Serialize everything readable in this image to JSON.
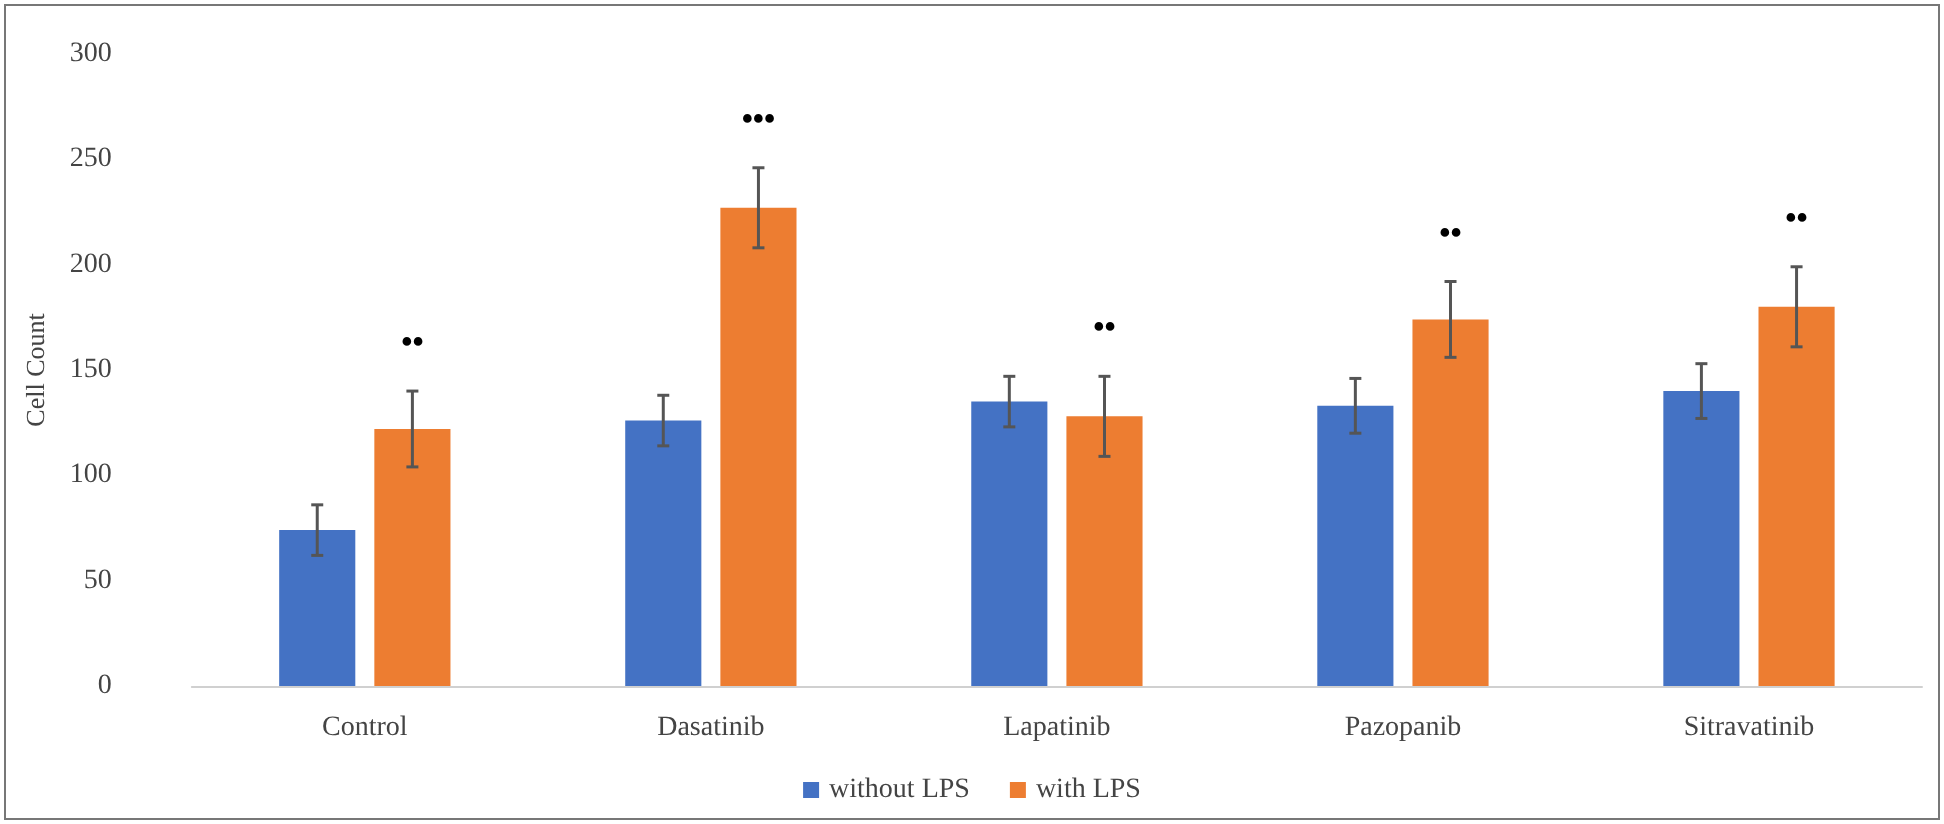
{
  "chart_data": {
    "type": "bar",
    "ylabel": "Cell Count",
    "categories": [
      "Control",
      "Dasatinib",
      "Lapatinib",
      "Pazopanib",
      "Sitravatinib"
    ],
    "series": [
      {
        "name": "without LPS",
        "color": "#4472c4",
        "values": [
          74,
          126,
          135,
          133,
          140
        ],
        "errors": [
          12,
          12,
          12,
          13,
          13
        ]
      },
      {
        "name": "with LPS",
        "color": "#ed7d31",
        "values": [
          122,
          227,
          128,
          174,
          180
        ],
        "errors": [
          18,
          19,
          19,
          18,
          19
        ]
      }
    ],
    "annotations": [
      "••",
      "•••",
      "••",
      "••",
      "••"
    ],
    "ylim": [
      0,
      300
    ],
    "yticks": [
      0,
      50,
      100,
      150,
      200,
      250,
      300
    ],
    "grid": false,
    "legend": "bottom"
  }
}
